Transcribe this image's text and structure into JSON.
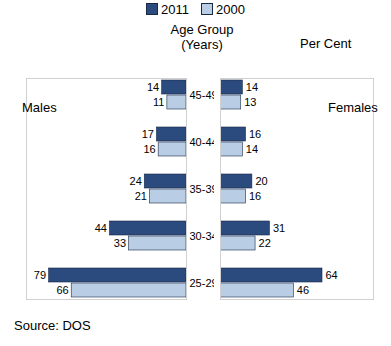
{
  "chart_data": [
    {
      "type": "bar",
      "orientation": "horizontal",
      "title": "Males",
      "ylabel": "Age Group (Years)",
      "categories": [
        "45-49",
        "40-44",
        "35-39",
        "30-34",
        "25-29"
      ],
      "series": [
        {
          "name": "2011",
          "color": "#2b4a7e",
          "values": [
            14,
            17,
            24,
            44,
            79
          ]
        },
        {
          "name": "2000",
          "color": "#b9cde5",
          "values": [
            11,
            16,
            21,
            33,
            66
          ]
        }
      ],
      "xlim": [
        0,
        92
      ],
      "data_labels": true,
      "tick_labels": "y",
      "legend": "top",
      "annotations": [
        "Source: DOS"
      ]
    },
    {
      "type": "bar",
      "orientation": "horizontal",
      "title": "Females",
      "xlabel": "Per Cent",
      "categories": [
        "45-49",
        "40-44",
        "35-39",
        "30-34",
        "25-29"
      ],
      "series": [
        {
          "name": "2011",
          "color": "#2b4a7e",
          "values": [
            14,
            16,
            20,
            31,
            64
          ]
        },
        {
          "name": "2000",
          "color": "#b9cde5",
          "values": [
            13,
            14,
            16,
            22,
            46
          ]
        }
      ],
      "xlim": [
        0,
        96
      ],
      "data_labels": true,
      "tick_labels": false
    }
  ]
}
